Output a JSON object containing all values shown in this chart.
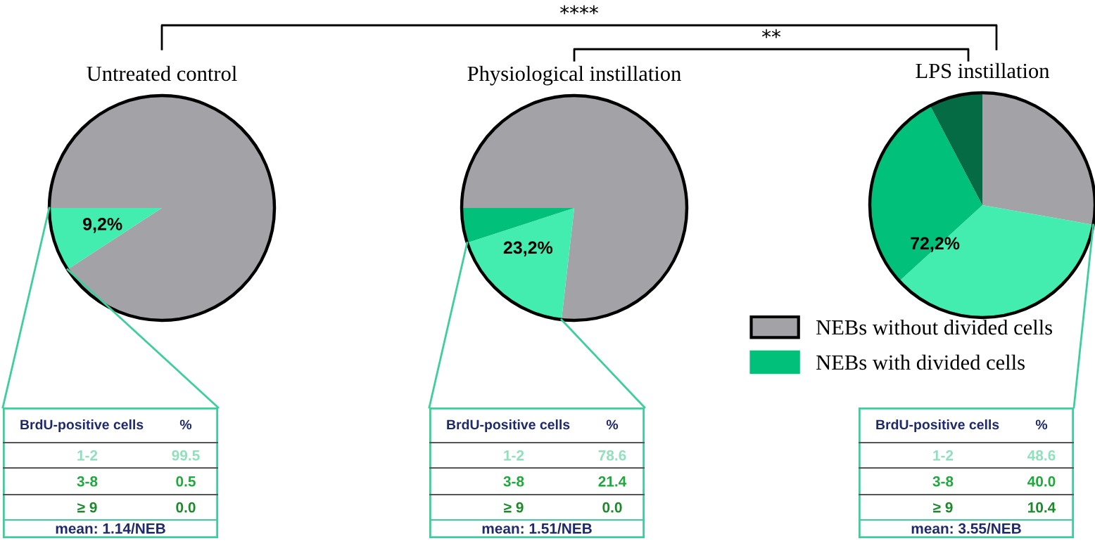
{
  "chart_data": [
    {
      "type": "pie",
      "title": "Untreated control",
      "categories": [
        null,
        null
      ],
      "values": [
        90.8,
        9.2
      ],
      "colors": [
        "#a3a2a7",
        "#43edaf"
      ],
      "annotations": [
        "9,2%",
        "****"
      ]
    },
    {
      "type": "pie",
      "title": "Physiological instillation",
      "categories": [
        null,
        null,
        null
      ],
      "values": [
        76.8,
        18.2,
        5.0
      ],
      "colors": [
        "#a3a2a7",
        "#43edaf",
        "#00c07a"
      ],
      "annotations": [
        "23,2%",
        "**"
      ]
    },
    {
      "type": "pie",
      "title": "LPS instillation",
      "categories": [
        "NEBs without divided cells",
        null,
        "NEBs with divided cells",
        null
      ],
      "values": [
        27.8,
        35.4,
        29.1,
        7.7
      ],
      "colors": [
        "#a3a2a7",
        "#43edaf",
        "#00c07a",
        "#046b45"
      ],
      "annotations": [
        "72,2%"
      ],
      "legend": "bottom left"
    },
    {
      "type": "other",
      "annotations": [
        "BrdU-positive cells",
        "%",
        "1-2",
        "99.5",
        "3-8",
        "0.5",
        "≥ 9",
        "0.0",
        "mean: 1.14/NEB"
      ]
    },
    {
      "type": "other",
      "annotations": [
        "BrdU-positive cells",
        "%",
        "1-2",
        "78.6",
        "3-8",
        "21.4",
        "≥ 9",
        "0.0",
        "mean: 1.51/NEB"
      ]
    },
    {
      "type": "other",
      "annotations": [
        "BrdU-positive cells",
        "%",
        "1-2",
        "48.6",
        "3-8",
        "40.0",
        "≥ 9",
        "10.4",
        "mean: 3.55/NEB"
      ]
    }
  ]
}
